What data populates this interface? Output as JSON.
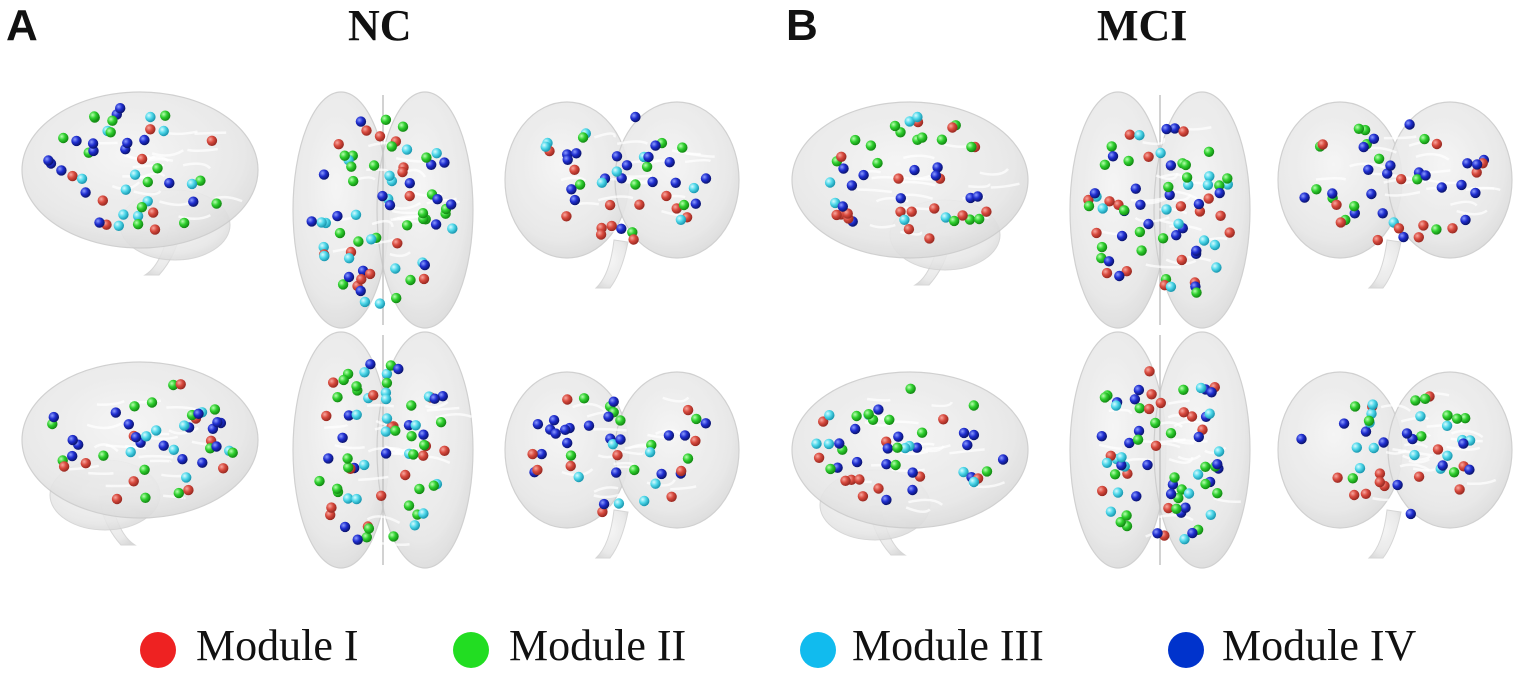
{
  "panels": [
    {
      "letter": "A",
      "title": "NC"
    },
    {
      "letter": "B",
      "title": "MCI"
    }
  ],
  "legend": [
    {
      "label": "Module I",
      "color": "#ee2222"
    },
    {
      "label": "Module II",
      "color": "#22dd22"
    },
    {
      "label": "Module III",
      "color": "#11bbee"
    },
    {
      "label": "Module IV",
      "color": "#0033cc"
    }
  ],
  "views": [
    "sagittal-left",
    "axial-top",
    "coronal",
    "sagittal-right",
    "axial-bottom",
    "coronal-back"
  ]
}
